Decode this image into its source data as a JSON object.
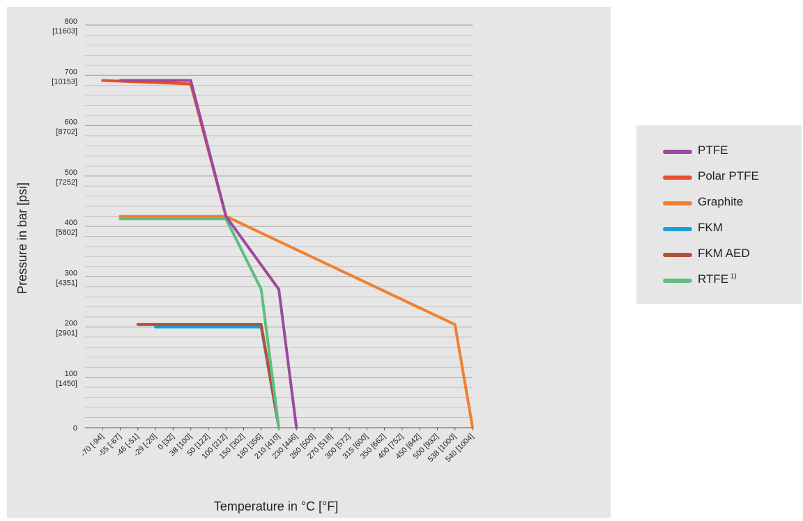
{
  "chart_data": {
    "type": "line",
    "xlabel": "Temperature in °C [°F]",
    "ylabel": "Pressure in bar [psi]",
    "x_tick_labels": [
      "-70 [-94]",
      "-55 [-67]",
      "-46 [-51]",
      "-29 [-20]",
      "0 [32]",
      "38 [100]",
      "50 [122]",
      "100 [212]",
      "150 [302]",
      "180 [356]",
      "210 [410]",
      "230 [446]",
      "260 [500]",
      "270 [518]",
      "300 [572]",
      "315 [600]",
      "350 [662]",
      "400 [752]",
      "450 [842]",
      "500 [932]",
      "538 [1000]",
      "540 [1004]"
    ],
    "y_ticks": [
      {
        "value": 0,
        "bar": "0",
        "psi": ""
      },
      {
        "value": 100,
        "bar": "100",
        "psi": "[1450]"
      },
      {
        "value": 200,
        "bar": "200",
        "psi": "[2901]"
      },
      {
        "value": 300,
        "bar": "300",
        "psi": "[4351]"
      },
      {
        "value": 400,
        "bar": "400",
        "psi": "[5802]"
      },
      {
        "value": 500,
        "bar": "500",
        "psi": "[7252]"
      },
      {
        "value": 600,
        "bar": "600",
        "psi": "[8702]"
      },
      {
        "value": 700,
        "bar": "700",
        "psi": "[10153]"
      },
      {
        "value": 800,
        "bar": "800",
        "psi": "[11603]"
      }
    ],
    "ylim": [
      0,
      800
    ],
    "grid": true,
    "legend_position": "right",
    "series": [
      {
        "name": "Graphite",
        "color": "#f08030",
        "x": [
          "-55 [-67]",
          "100 [212]",
          "538 [1000]",
          "540 [1004]"
        ],
        "y": [
          420,
          420,
          205,
          0
        ]
      },
      {
        "name": "Polar PTFE",
        "color": "#e8502a",
        "x": [
          "-70 [-94]",
          "38 [100]",
          "100 [212]"
        ],
        "y": [
          690,
          683,
          420
        ]
      },
      {
        "name": "FKM",
        "color": "#1a9fd8",
        "x": [
          "-29 [-20]",
          "180 [356]",
          "210 [410]"
        ],
        "y": [
          200,
          200,
          0
        ]
      },
      {
        "name": "FKM AED",
        "color": "#b45038",
        "x": [
          "-46 [-51]",
          "180 [356]",
          "210 [410]"
        ],
        "y": [
          205,
          205,
          0
        ]
      },
      {
        "name": "RTFE",
        "label_note": "1)",
        "color": "#5cbf82",
        "x": [
          "-55 [-67]",
          "100 [212]",
          "180 [356]",
          "210 [410]"
        ],
        "y": [
          415,
          415,
          275,
          0
        ]
      },
      {
        "name": "PTFE",
        "color": "#9b4a9e",
        "x": [
          "-55 [-67]",
          "38 [100]",
          "100 [212]",
          "210 [410]",
          "230 [446]"
        ],
        "y": [
          690,
          690,
          420,
          275,
          0
        ]
      }
    ],
    "legend_order": [
      "PTFE",
      "Polar PTFE",
      "Graphite",
      "FKM",
      "FKM AED",
      "RTFE"
    ]
  }
}
